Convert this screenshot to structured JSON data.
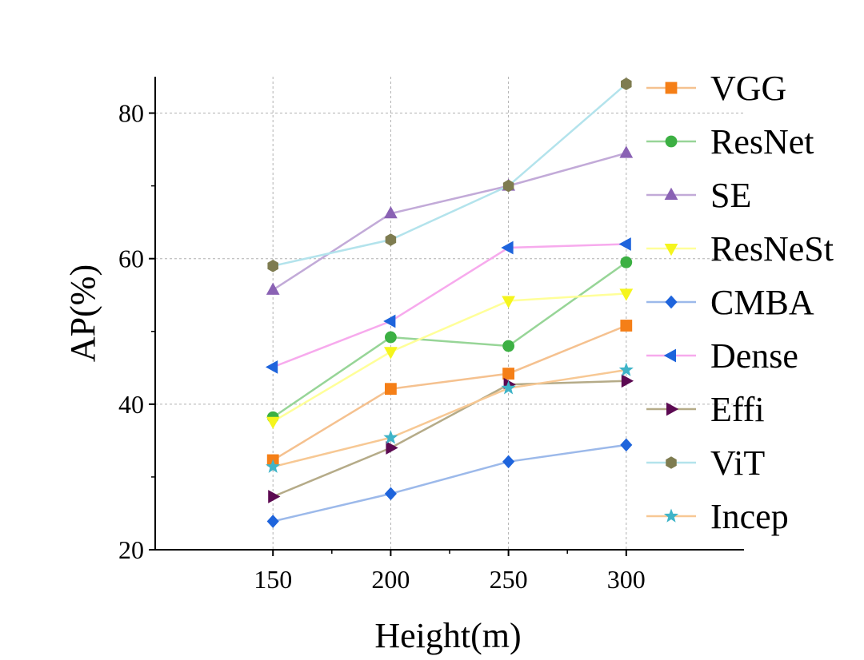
{
  "chart_data": {
    "type": "line",
    "title": "",
    "xlabel": "Height(m)",
    "ylabel": "AP(%)",
    "x": [
      150,
      200,
      250,
      300
    ],
    "x_ticks": [
      150,
      200,
      250,
      300
    ],
    "y_ticks": [
      20,
      40,
      60,
      80
    ],
    "xlim": [
      100,
      350
    ],
    "ylim": [
      20,
      85
    ],
    "grid": true,
    "legend_position": "right",
    "series": [
      {
        "name": "VGG",
        "marker": "square",
        "line_color": "#f5c18f",
        "marker_color": "#f57f17",
        "values": [
          32.3,
          42.1,
          44.2,
          50.8
        ]
      },
      {
        "name": "ResNet",
        "marker": "circle",
        "line_color": "#97d597",
        "marker_color": "#3cb043",
        "values": [
          38.2,
          49.2,
          48.0,
          59.5
        ]
      },
      {
        "name": "SE",
        "marker": "triangle-up",
        "line_color": "#c2aad8",
        "marker_color": "#8a62b4",
        "values": [
          55.7,
          66.2,
          70.0,
          74.5
        ]
      },
      {
        "name": "ResNeSt",
        "marker": "triangle-down",
        "line_color": "#ffff99",
        "marker_color": "#f5f51c",
        "values": [
          37.6,
          47.2,
          54.2,
          55.2
        ]
      },
      {
        "name": "CMBA",
        "marker": "diamond",
        "line_color": "#9cb9ea",
        "marker_color": "#1e64dc",
        "values": [
          23.9,
          27.7,
          32.1,
          34.4
        ]
      },
      {
        "name": "Dense",
        "marker": "triangle-left",
        "line_color": "#f7aaed",
        "marker_color": "#1e64dc",
        "values": [
          45.1,
          51.4,
          61.5,
          62.0
        ]
      },
      {
        "name": "Effi",
        "marker": "triangle-right",
        "line_color": "#b5ab88",
        "marker_color": "#5c0a52",
        "values": [
          27.3,
          34.0,
          42.7,
          43.2
        ]
      },
      {
        "name": "ViT",
        "marker": "hexagon",
        "line_color": "#b3e3ec",
        "marker_color": "#7e7c50",
        "values": [
          59.0,
          62.6,
          70.0,
          84.0
        ]
      },
      {
        "name": "Incep",
        "marker": "star",
        "line_color": "#f7c894",
        "marker_color": "#3fb4c8",
        "values": [
          31.4,
          35.4,
          42.2,
          44.7
        ]
      }
    ]
  }
}
